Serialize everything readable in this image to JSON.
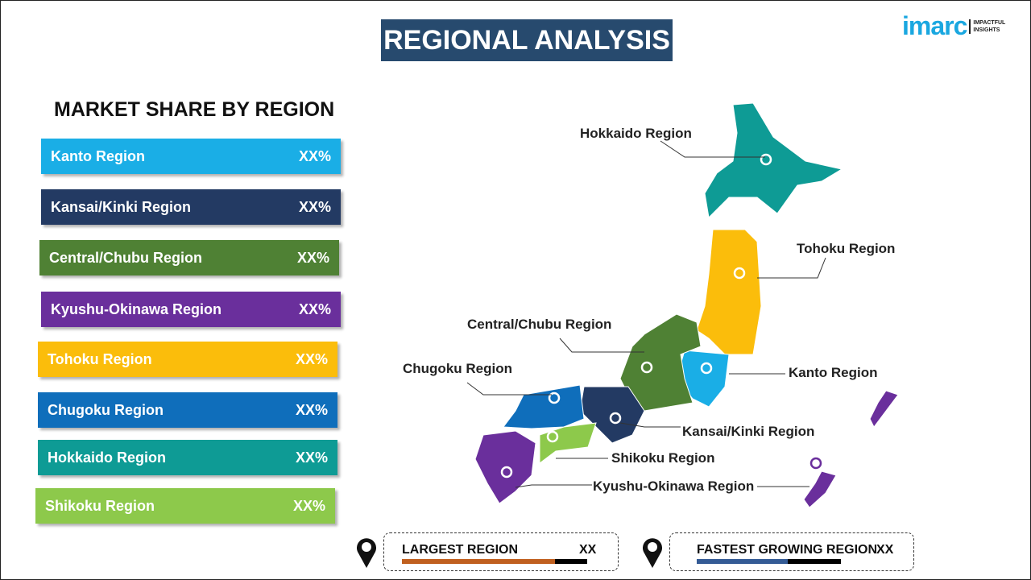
{
  "title": "REGIONAL ANALYSIS",
  "logo": {
    "brand": "imarc",
    "tagline1": "IMPACTFUL",
    "tagline2": "INSIGHTS"
  },
  "subtitle": "MARKET SHARE BY REGION",
  "bars": [
    {
      "label": "Kanto Region",
      "value": "XX%",
      "color": "#1aaee6"
    },
    {
      "label": "Kansai/Kinki Region",
      "value": "XX%",
      "color": "#233a63"
    },
    {
      "label": "Central/Chubu Region",
      "value": "XX%",
      "color": "#4f8134"
    },
    {
      "label": "Kyushu-Okinawa Region",
      "value": "XX%",
      "color": "#6a2f9c"
    },
    {
      "label": "Tohoku Region",
      "value": "XX%",
      "color": "#fbbd0b"
    },
    {
      "label": "Chugoku Region",
      "value": "XX%",
      "color": "#0f6ebb"
    },
    {
      "label": "Hokkaido Region",
      "value": "XX%",
      "color": "#0e9b95"
    },
    {
      "label": "Shikoku Region",
      "value": "XX%",
      "color": "#8dc94b"
    }
  ],
  "map_labels": {
    "hokkaido": "Hokkaido Region",
    "tohoku": "Tohoku Region",
    "central": "Central/Chubu Region",
    "chugoku": "Chugoku Region",
    "kanto": "Kanto Region",
    "kansai": "Kansai/Kinki Region",
    "shikoku": "Shikoku Region",
    "kyushu": "Kyushu-Okinawa Region"
  },
  "largest": {
    "label": "LARGEST REGION",
    "value": "XX",
    "color": "#c0601f"
  },
  "fastest": {
    "label": "FASTEST GROWING REGION",
    "value": "XX",
    "color": "#345b95"
  }
}
